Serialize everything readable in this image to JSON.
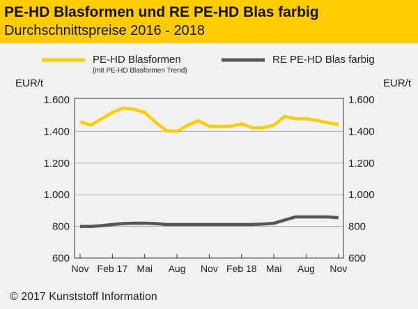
{
  "header": {
    "title": "PE-HD Blasformen und RE PE-HD Blas farbig",
    "subtitle": "Durchschnittspreise 2016 - 2018"
  },
  "footer": {
    "copyright": "© 2017 Kunststoff Information"
  },
  "colors": {
    "yellow": "#fecc00",
    "gray": "#555555"
  },
  "chart_data": {
    "type": "line",
    "title": "PE-HD Blasformen und RE PE-HD Blas farbig",
    "subtitle": "Durchschnittspreise 2016 - 2018",
    "ylabel_left": "EUR/t",
    "ylabel_right": "EUR/t",
    "ylim": [
      600,
      1600
    ],
    "yticks": [
      "600",
      "800",
      "1.000",
      "1.200",
      "1.400",
      "1.600"
    ],
    "ytick_values": [
      600,
      800,
      1000,
      1200,
      1400,
      1600
    ],
    "xticks": [
      "Nov",
      "Feb 17",
      "Mai",
      "Aug",
      "Nov",
      "Feb 18",
      "Mai",
      "Aug",
      "Nov"
    ],
    "xtick_index": [
      0,
      3,
      6,
      9,
      12,
      15,
      18,
      21,
      24
    ],
    "grid": "horizontal",
    "legend_position": "top",
    "series": [
      {
        "name": "PE-HD Blasformen",
        "note": "(mit PE-HD Blasformen Trend)",
        "color": "#fecc00",
        "values": [
          1460,
          1440,
          1480,
          1520,
          1548,
          1540,
          1520,
          1458,
          1405,
          1400,
          1440,
          1468,
          1432,
          1432,
          1432,
          1448,
          1423,
          1423,
          1440,
          1494,
          1480,
          1480,
          1470,
          1455,
          1443
        ]
      },
      {
        "name": "RE PE-HD Blas farbig",
        "color": "#555555",
        "values": [
          800,
          800,
          805,
          812,
          818,
          820,
          820,
          818,
          812,
          812,
          812,
          812,
          812,
          812,
          812,
          812,
          812,
          815,
          820,
          840,
          860,
          860,
          860,
          860,
          855
        ]
      }
    ]
  }
}
